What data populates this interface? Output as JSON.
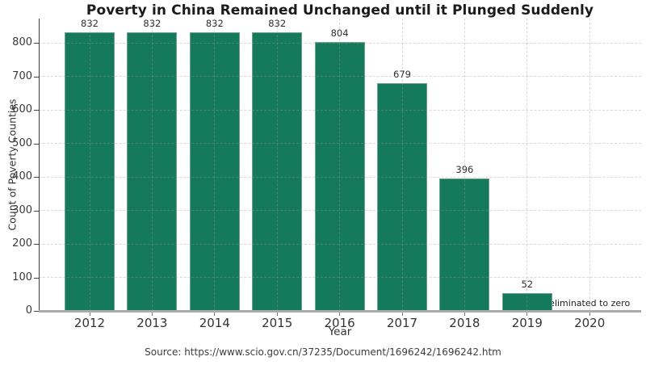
{
  "title": "Poverty in China Remained Unchanged until it Plunged Suddenly",
  "source_line": "Source: https://www.scio.gov.cn/37235/Document/1696242/1696242.htm",
  "colors": {
    "bar": "#147a5b",
    "bar_edge": "rgba(200,200,200,0.5)",
    "grid": "rgba(155,155,155,0.38)",
    "left_spine": "#3c3c3c",
    "bottom_spine": "#ababab",
    "x_tick": "#777777",
    "y_tick": "#444444"
  },
  "chart_data": {
    "type": "bar",
    "title": "Poverty in China Remained Unchanged until it Plunged Suddenly",
    "xlabel": "Year",
    "ylabel": "Count of Poverty Counties",
    "categories": [
      "2012",
      "2013",
      "2014",
      "2015",
      "2016",
      "2017",
      "2018",
      "2019",
      "2020"
    ],
    "values": [
      832,
      832,
      832,
      832,
      804,
      679,
      396,
      52,
      0
    ],
    "bar_labels": [
      "832",
      "832",
      "832",
      "832",
      "804",
      "679",
      "396",
      "52",
      ""
    ],
    "annotation": {
      "text": "eliminated to zero",
      "category": "2020",
      "value": 0
    },
    "ylim": [
      0,
      873
    ],
    "yticks": [
      0,
      100,
      200,
      300,
      400,
      500,
      600,
      700,
      800
    ],
    "grid": "dashed, horizontal and vertical",
    "legend": "none",
    "bar_color": "#147a5b"
  }
}
